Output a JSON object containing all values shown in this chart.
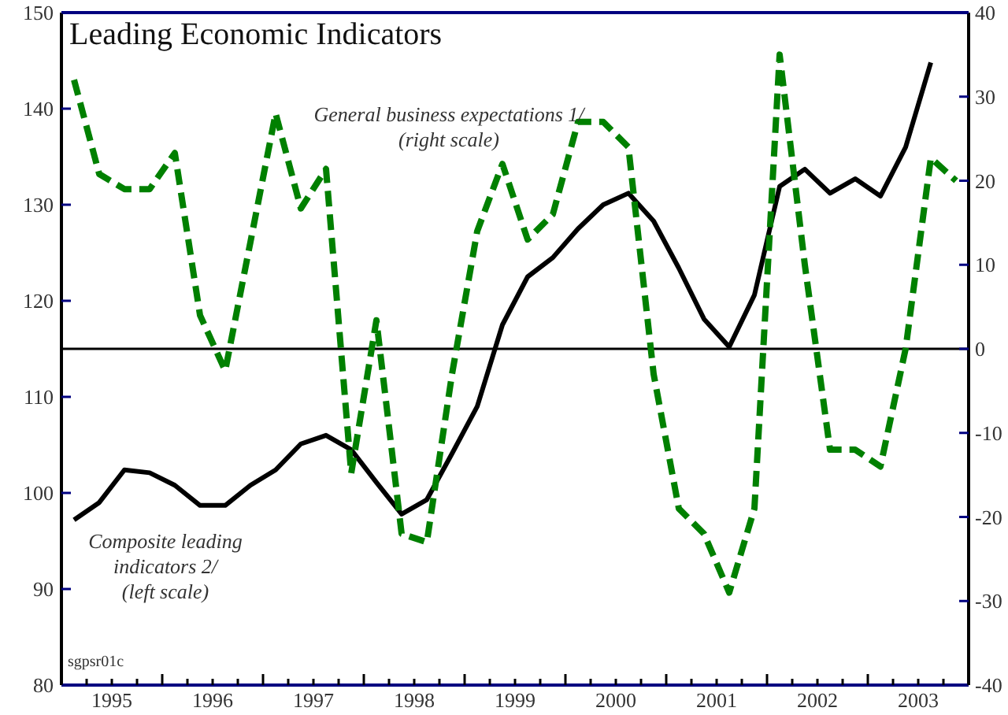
{
  "chart_data": {
    "type": "line",
    "title": "Leading Economic Indicators",
    "xlim": [
      1995,
      2004
    ],
    "xticks": [
      {
        "value": 1995.5,
        "label": "1995"
      },
      {
        "value": 1996.5,
        "label": "1996"
      },
      {
        "value": 1997.5,
        "label": "1997"
      },
      {
        "value": 1998.5,
        "label": "1998"
      },
      {
        "value": 1999.5,
        "label": "1999"
      },
      {
        "value": 2000.5,
        "label": "2000"
      },
      {
        "value": 2001.5,
        "label": "2001"
      },
      {
        "value": 2002.5,
        "label": "2002"
      },
      {
        "value": 2003.5,
        "label": "2003"
      }
    ],
    "ylim": [
      80,
      150
    ],
    "yticks": [
      80,
      90,
      100,
      110,
      120,
      130,
      140,
      150
    ],
    "y2lim": [
      -40,
      40
    ],
    "y2ticks": [
      -40,
      -30,
      -20,
      -10,
      0,
      10,
      20,
      30,
      40
    ],
    "grid": false,
    "ref_lines": [
      {
        "axis": "y2",
        "value": 0,
        "color": "#000000"
      }
    ],
    "annotations": [
      "sgpsr01c"
    ],
    "series": [
      {
        "name": "Composite leading indicators 2/ (left scale)",
        "color": "#000000",
        "line_style": "solid",
        "axis": "y",
        "x": [
          1995.125,
          1995.375,
          1995.625,
          1995.875,
          1996.125,
          1996.375,
          1996.625,
          1996.875,
          1997.125,
          1997.375,
          1997.625,
          1997.875,
          1998.125,
          1998.375,
          1998.625,
          1998.875,
          1999.125,
          1999.375,
          1999.625,
          1999.875,
          2000.125,
          2000.375,
          2000.625,
          2000.875,
          2001.125,
          2001.375,
          2001.625,
          2001.875,
          2002.125,
          2002.375,
          2002.625,
          2002.875,
          2003.125,
          2003.375,
          2003.625
        ],
        "values": [
          97.2,
          99,
          102.4,
          102.1,
          100.8,
          98.7,
          98.7,
          100.8,
          102.4,
          105.1,
          106,
          104.5,
          101.1,
          97.8,
          99.3,
          104.1,
          109,
          117.5,
          122.5,
          124.5,
          127.5,
          130,
          131.2,
          128.3,
          123.4,
          118.1,
          115.2,
          120.6,
          131.9,
          133.7,
          131.2,
          132.7,
          130.9,
          136,
          144.8
        ]
      },
      {
        "name": "General business expectations 1/ (right scale)",
        "color": "#008000",
        "line_style": "dashed",
        "axis": "y2",
        "x": [
          1995.125,
          1995.375,
          1995.625,
          1995.875,
          1996.125,
          1996.375,
          1996.625,
          1996.875,
          1997.125,
          1997.375,
          1997.625,
          1997.875,
          1998.125,
          1998.375,
          1998.625,
          1998.875,
          1999.125,
          1999.375,
          1999.625,
          1999.875,
          2000.125,
          2000.375,
          2000.625,
          2000.875,
          2001.125,
          2001.375,
          2001.625,
          2001.875,
          2002.125,
          2002.375,
          2002.625,
          2002.875,
          2003.125,
          2003.375,
          2003.625,
          2003.875
        ],
        "values": [
          32,
          20.8,
          19,
          19,
          23.3,
          4,
          -2.6,
          12.7,
          28,
          16.7,
          21.4,
          -14.8,
          3.4,
          -22,
          -23,
          -3,
          14,
          22,
          13,
          16,
          27,
          27,
          24,
          -3,
          -19,
          -22,
          -29,
          -19,
          35,
          10,
          -12,
          -12,
          -14,
          0,
          22.7,
          20
        ]
      }
    ]
  }
}
